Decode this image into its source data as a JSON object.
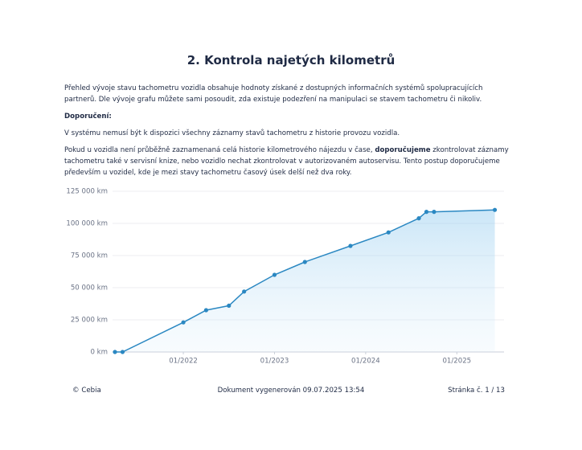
{
  "title": "2. Kontrola najetých kilometrů",
  "intro": "Přehled vývoje stavu tachometru vozidla obsahuje hodnoty získané z dostupných informačních systémů spolupracujících partnerů. Dle vývoje grafu můžete sami posoudit, zda existuje podezření na manipulaci se stavem tachometru či nikoliv.",
  "recommendation_heading": "Doporučení:",
  "recommendation_1": "V systému nemusí být k dispozici všechny záznamy stavů tachometru z historie provozu vozidla.",
  "recommendation_2": [
    "Pokud u vozidla není průběžně zaznamenaná celá historie kilometrového nájezdu v čase, ",
    "doporučujeme",
    " zkontrolovat záznamy tachometru také v servisní knize, nebo vozidlo nechat zkontrolovat v autorizovaném autoservisu. Tento postup doporučujeme především u vozidel, kde je mezi stavy tachometru časový úsek delší než dva roky."
  ],
  "chart_data": {
    "type": "area",
    "x": [
      "04/2021",
      "05/2021",
      "01/2022",
      "04/2022",
      "07/2022",
      "09/2022",
      "01/2023",
      "05/2023",
      "11/2023",
      "04/2024",
      "08/2024",
      "09/2024",
      "10/2024",
      "06/2025"
    ],
    "values": [
      0,
      0,
      23000,
      32500,
      36000,
      47000,
      60000,
      70000,
      82500,
      93000,
      104000,
      109000,
      109000,
      110500
    ],
    "color": "#2b88c2",
    "xlim": [
      "04/2021",
      "07/2025"
    ],
    "xticks": [
      "01/2022",
      "01/2023",
      "01/2024",
      "01/2025"
    ],
    "ylim": [
      0,
      125000
    ],
    "yticks": [
      {
        "value": 0,
        "label": "0 km"
      },
      {
        "value": 25000,
        "label": "25 000 km"
      },
      {
        "value": 50000,
        "label": "50 000 km"
      },
      {
        "value": 75000,
        "label": "75 000 km"
      },
      {
        "value": 100000,
        "label": "100 000 km"
      },
      {
        "value": 125000,
        "label": "125 000 km"
      }
    ],
    "grid": true
  },
  "footer": {
    "left": "© Cebia",
    "center": "Dokument vygenerován 09.07.2025 13:54",
    "right": "Stránka č. 1 / 13"
  }
}
